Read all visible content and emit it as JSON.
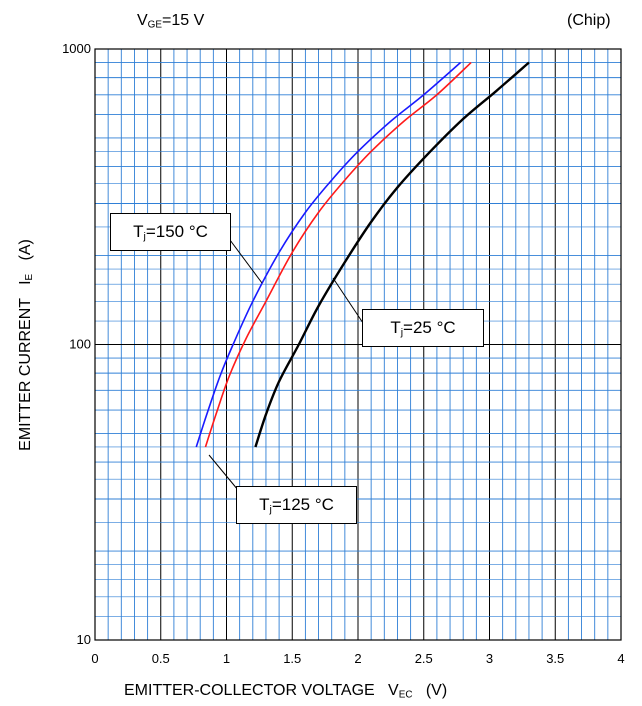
{
  "header": {
    "condition_main": "V",
    "condition_sub": "GE",
    "condition_rest": "=15 V",
    "scope": "(Chip)"
  },
  "axes": {
    "xlabel_main": "EMITTER-COLLECTOR VOLTAGE   V",
    "xlabel_sub": "EC",
    "xlabel_unit": "   (V)",
    "ylabel_main": "EMITTER CURRENT   I",
    "ylabel_sub": "E",
    "ylabel_unit": "   (A)"
  },
  "annotations": {
    "t150": {
      "pre": "T",
      "sub": "j",
      "post": "=150 °C"
    },
    "t25": {
      "pre": "T",
      "sub": "j",
      "post": "=25 °C"
    },
    "t125": {
      "pre": "T",
      "sub": "j",
      "post": "=125 °C"
    }
  },
  "colors": {
    "grid": "#2f7fd6",
    "t150": "#1a1aff",
    "t125": "#ff1a1a",
    "t25": "#000000"
  },
  "chart_data": {
    "type": "line",
    "title": "",
    "xlabel": "EMITTER-COLLECTOR VOLTAGE V_EC (V)",
    "ylabel": "EMITTER CURRENT I_E (A)",
    "xlim": [
      0,
      4
    ],
    "ylim": [
      10,
      1000
    ],
    "yscale": "log",
    "grid": true,
    "x_ticks": [
      "0",
      "0.5",
      "1",
      "1.5",
      "2",
      "2.5",
      "3",
      "3.5",
      "4"
    ],
    "y_ticks": [
      "10",
      "100",
      "1000"
    ],
    "series": [
      {
        "name": "Tj=150 °C",
        "color": "#1a1aff",
        "x": [
          0.77,
          0.85,
          0.95,
          1.05,
          1.2,
          1.4,
          1.6,
          1.8,
          2.0,
          2.25,
          2.5,
          2.78
        ],
        "y": [
          45,
          58,
          78,
          100,
          140,
          205,
          280,
          360,
          450,
          570,
          700,
          900
        ]
      },
      {
        "name": "Tj=125 °C",
        "color": "#ff1a1a",
        "x": [
          0.84,
          0.92,
          1.02,
          1.15,
          1.3,
          1.5,
          1.7,
          1.9,
          2.1,
          2.35,
          2.6,
          2.86
        ],
        "y": [
          45,
          58,
          78,
          105,
          140,
          205,
          280,
          360,
          450,
          570,
          700,
          900
        ]
      },
      {
        "name": "Tj=25 °C",
        "color": "#000000",
        "x": [
          1.22,
          1.3,
          1.4,
          1.55,
          1.7,
          1.9,
          2.1,
          2.3,
          2.55,
          2.8,
          3.05,
          3.3
        ],
        "y": [
          45,
          58,
          75,
          100,
          135,
          190,
          260,
          340,
          450,
          580,
          720,
          900
        ]
      }
    ]
  }
}
